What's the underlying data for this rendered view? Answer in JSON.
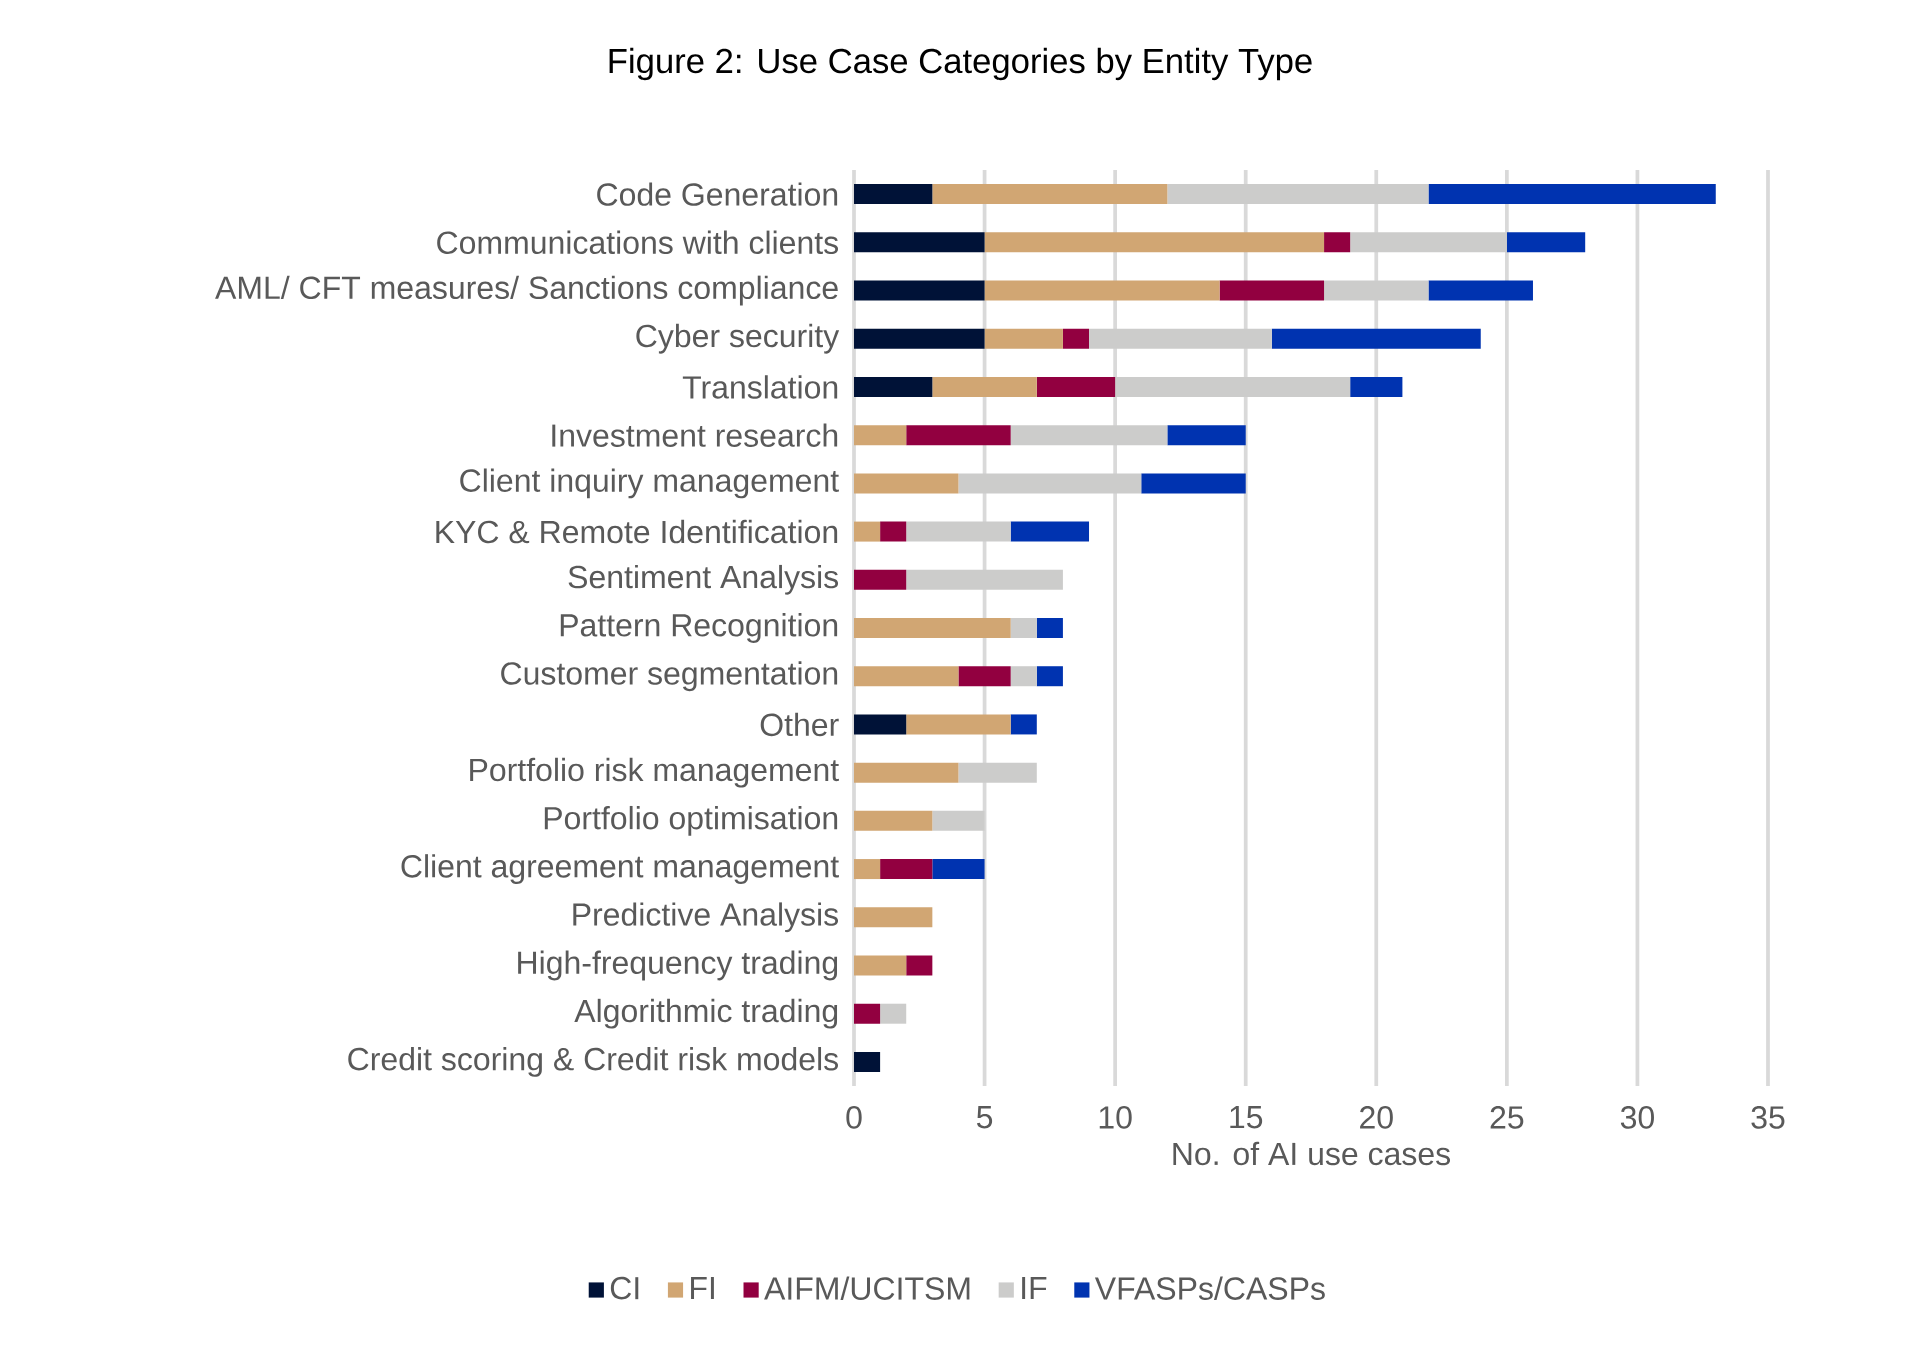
{
  "chart_data": {
    "type": "bar",
    "orientation": "horizontal",
    "stacked": true,
    "title": "Figure 2: Use Case Categories by Entity Type",
    "xlabel": "No. of AI use cases",
    "categories": [
      "Code Generation",
      "Communications with clients",
      "AML/ CFT measures/ Sanctions compliance",
      "Cyber security",
      "Translation",
      "Investment research",
      "Client inquiry management",
      "KYC & Remote Identification",
      "Sentiment Analysis",
      "Pattern Recognition",
      "Customer segmentation",
      "Other",
      "Portfolio risk management",
      "Portfolio optimisation",
      "Client agreement management",
      "Predictive Analysis",
      "High-frequency trading",
      "Algorithmic trading",
      "Credit scoring & Credit risk models"
    ],
    "series": [
      {
        "name": "CI",
        "color": "#001237",
        "values": [
          3,
          5,
          5,
          5,
          3,
          0,
          0,
          0,
          0,
          0,
          0,
          2,
          0,
          0,
          0,
          0,
          0,
          0,
          1
        ]
      },
      {
        "name": "FI",
        "color": "#d1a673",
        "values": [
          9,
          13,
          9,
          3,
          4,
          2,
          4,
          1,
          0,
          6,
          4,
          4,
          4,
          3,
          1,
          3,
          2,
          0,
          0
        ]
      },
      {
        "name": "AIFM/UCITSM",
        "color": "#920040",
        "values": [
          0,
          1,
          4,
          1,
          3,
          4,
          0,
          1,
          2,
          0,
          2,
          0,
          0,
          0,
          2,
          0,
          1,
          1,
          0
        ]
      },
      {
        "name": "IF",
        "color": "#cccccb",
        "values": [
          10,
          6,
          4,
          7,
          9,
          6,
          7,
          4,
          6,
          1,
          1,
          0,
          3,
          2,
          0,
          0,
          0,
          1,
          0
        ]
      },
      {
        "name": "VFASPs/CASPs",
        "color": "#0033b0",
        "values": [
          11,
          3,
          4,
          8,
          2,
          3,
          4,
          3,
          0,
          1,
          1,
          1,
          0,
          0,
          2,
          0,
          0,
          0,
          0
        ]
      }
    ],
    "xlim": [
      0,
      35
    ],
    "xticks": [
      0,
      5,
      10,
      15,
      20,
      25,
      30,
      35
    ],
    "grid": "x",
    "legend": "bottom"
  }
}
